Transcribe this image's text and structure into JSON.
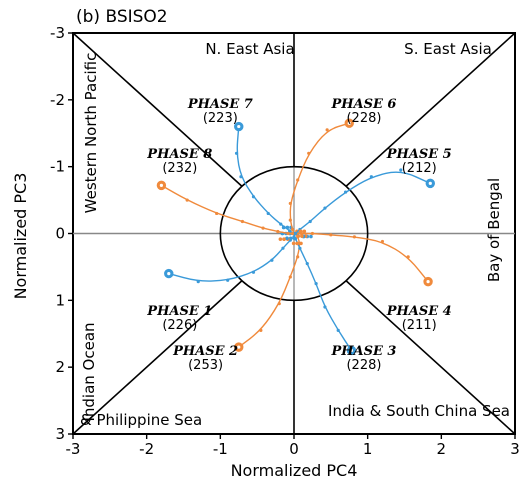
{
  "chart_data": {
    "type": "scatter",
    "title": "(b) BSISO2",
    "xlabel": "Normalized PC4",
    "ylabel": "Normalized PC3",
    "xlim": [
      -3,
      3
    ],
    "ylim": [
      -3,
      3
    ],
    "y_inverted": true,
    "x_ticks": [
      "-3",
      "-2",
      "-1",
      "0",
      "1",
      "2",
      "3"
    ],
    "y_ticks": [
      "-3",
      "-2",
      "-1",
      "0",
      "1",
      "2",
      "3"
    ],
    "x_tick_values": [
      -3,
      -2,
      -1,
      0,
      1,
      2,
      3
    ],
    "y_tick_values": [
      -3,
      -2,
      -1,
      0,
      1,
      2,
      3
    ],
    "unit_circle_radius": 1,
    "regions": {
      "top_left": "N. East Asia",
      "top_right": "S. East Asia",
      "left": "Western North Pacific",
      "right": "Bay of Bengal",
      "bottom_left_1": "Indian Ocean",
      "bottom_left_2": "& Philippine Sea",
      "bottom_right": "India & South China Sea"
    },
    "phases": [
      {
        "label": "PHASE 1",
        "count": "(226)",
        "x": -1.55,
        "y": 1.25
      },
      {
        "label": "PHASE 2",
        "count": "(253)",
        "x": -1.2,
        "y": 1.85
      },
      {
        "label": "PHASE 3",
        "count": "(228)",
        "x": 0.95,
        "y": 1.85
      },
      {
        "label": "PHASE 4",
        "count": "(211)",
        "x": 1.7,
        "y": 1.25
      },
      {
        "label": "PHASE 5",
        "count": "(212)",
        "x": 1.7,
        "y": -1.1
      },
      {
        "label": "PHASE 6",
        "count": "(228)",
        "x": 0.95,
        "y": -1.85
      },
      {
        "label": "PHASE 7",
        "count": "(223)",
        "x": -1.0,
        "y": -1.85
      },
      {
        "label": "PHASE 8",
        "count": "(232)",
        "x": -1.55,
        "y": -1.1
      }
    ],
    "series": [
      {
        "color": "#3a9ad9",
        "start": [
          -1.7,
          0.6
        ],
        "x": [
          -1.7,
          -1.3,
          -0.9,
          -0.55,
          -0.3,
          -0.15,
          -0.05,
          0.0,
          0.02
        ],
        "y": [
          0.6,
          0.72,
          0.7,
          0.58,
          0.4,
          0.22,
          0.1,
          0.05,
          0.0
        ]
      },
      {
        "color": "#f08a3c",
        "start": [
          -0.75,
          1.7
        ],
        "x": [
          -0.75,
          -0.45,
          -0.2,
          -0.05,
          0.05,
          0.08,
          0.05,
          0.02
        ],
        "y": [
          1.7,
          1.45,
          1.05,
          0.65,
          0.35,
          0.15,
          0.05,
          0.0
        ]
      },
      {
        "color": "#3a9ad9",
        "start": [
          0.78,
          1.75
        ],
        "x": [
          0.78,
          0.6,
          0.42,
          0.3,
          0.18,
          0.08,
          0.02,
          0.0
        ],
        "y": [
          1.75,
          1.45,
          1.1,
          0.75,
          0.45,
          0.22,
          0.08,
          0.0
        ]
      },
      {
        "color": "#f08a3c",
        "start": [
          1.82,
          0.72
        ],
        "x": [
          1.82,
          1.55,
          1.2,
          0.82,
          0.5,
          0.25,
          0.1,
          0.02
        ],
        "y": [
          0.72,
          0.35,
          0.12,
          0.05,
          0.02,
          0.0,
          0.0,
          0.0
        ]
      },
      {
        "color": "#3a9ad9",
        "start": [
          1.85,
          -0.75
        ],
        "x": [
          1.85,
          1.45,
          1.05,
          0.7,
          0.42,
          0.22,
          0.08,
          0.02
        ],
        "y": [
          -0.75,
          -0.95,
          -0.85,
          -0.62,
          -0.38,
          -0.18,
          -0.06,
          0.0
        ]
      },
      {
        "color": "#f08a3c",
        "start": [
          0.75,
          -1.65
        ],
        "x": [
          0.75,
          0.45,
          0.2,
          0.05,
          -0.05,
          -0.05,
          -0.02,
          0.0
        ],
        "y": [
          -1.65,
          -1.55,
          -1.2,
          -0.8,
          -0.45,
          -0.2,
          -0.06,
          0.0
        ]
      },
      {
        "color": "#3a9ad9",
        "start": [
          -0.75,
          -1.6
        ],
        "x": [
          -0.75,
          -0.78,
          -0.72,
          -0.55,
          -0.35,
          -0.18,
          -0.06,
          0.0
        ],
        "y": [
          -1.6,
          -1.2,
          -0.85,
          -0.55,
          -0.3,
          -0.14,
          -0.04,
          0.0
        ]
      },
      {
        "color": "#f08a3c",
        "start": [
          -1.8,
          -0.72
        ],
        "x": [
          -1.8,
          -1.45,
          -1.05,
          -0.7,
          -0.42,
          -0.22,
          -0.08,
          -0.02
        ],
        "y": [
          -0.72,
          -0.5,
          -0.3,
          -0.18,
          -0.08,
          -0.03,
          0.0,
          0.0
        ]
      }
    ],
    "grid": false,
    "legend": "none",
    "colors": {
      "blue": "#3a9ad9",
      "orange": "#f08a3c"
    }
  }
}
